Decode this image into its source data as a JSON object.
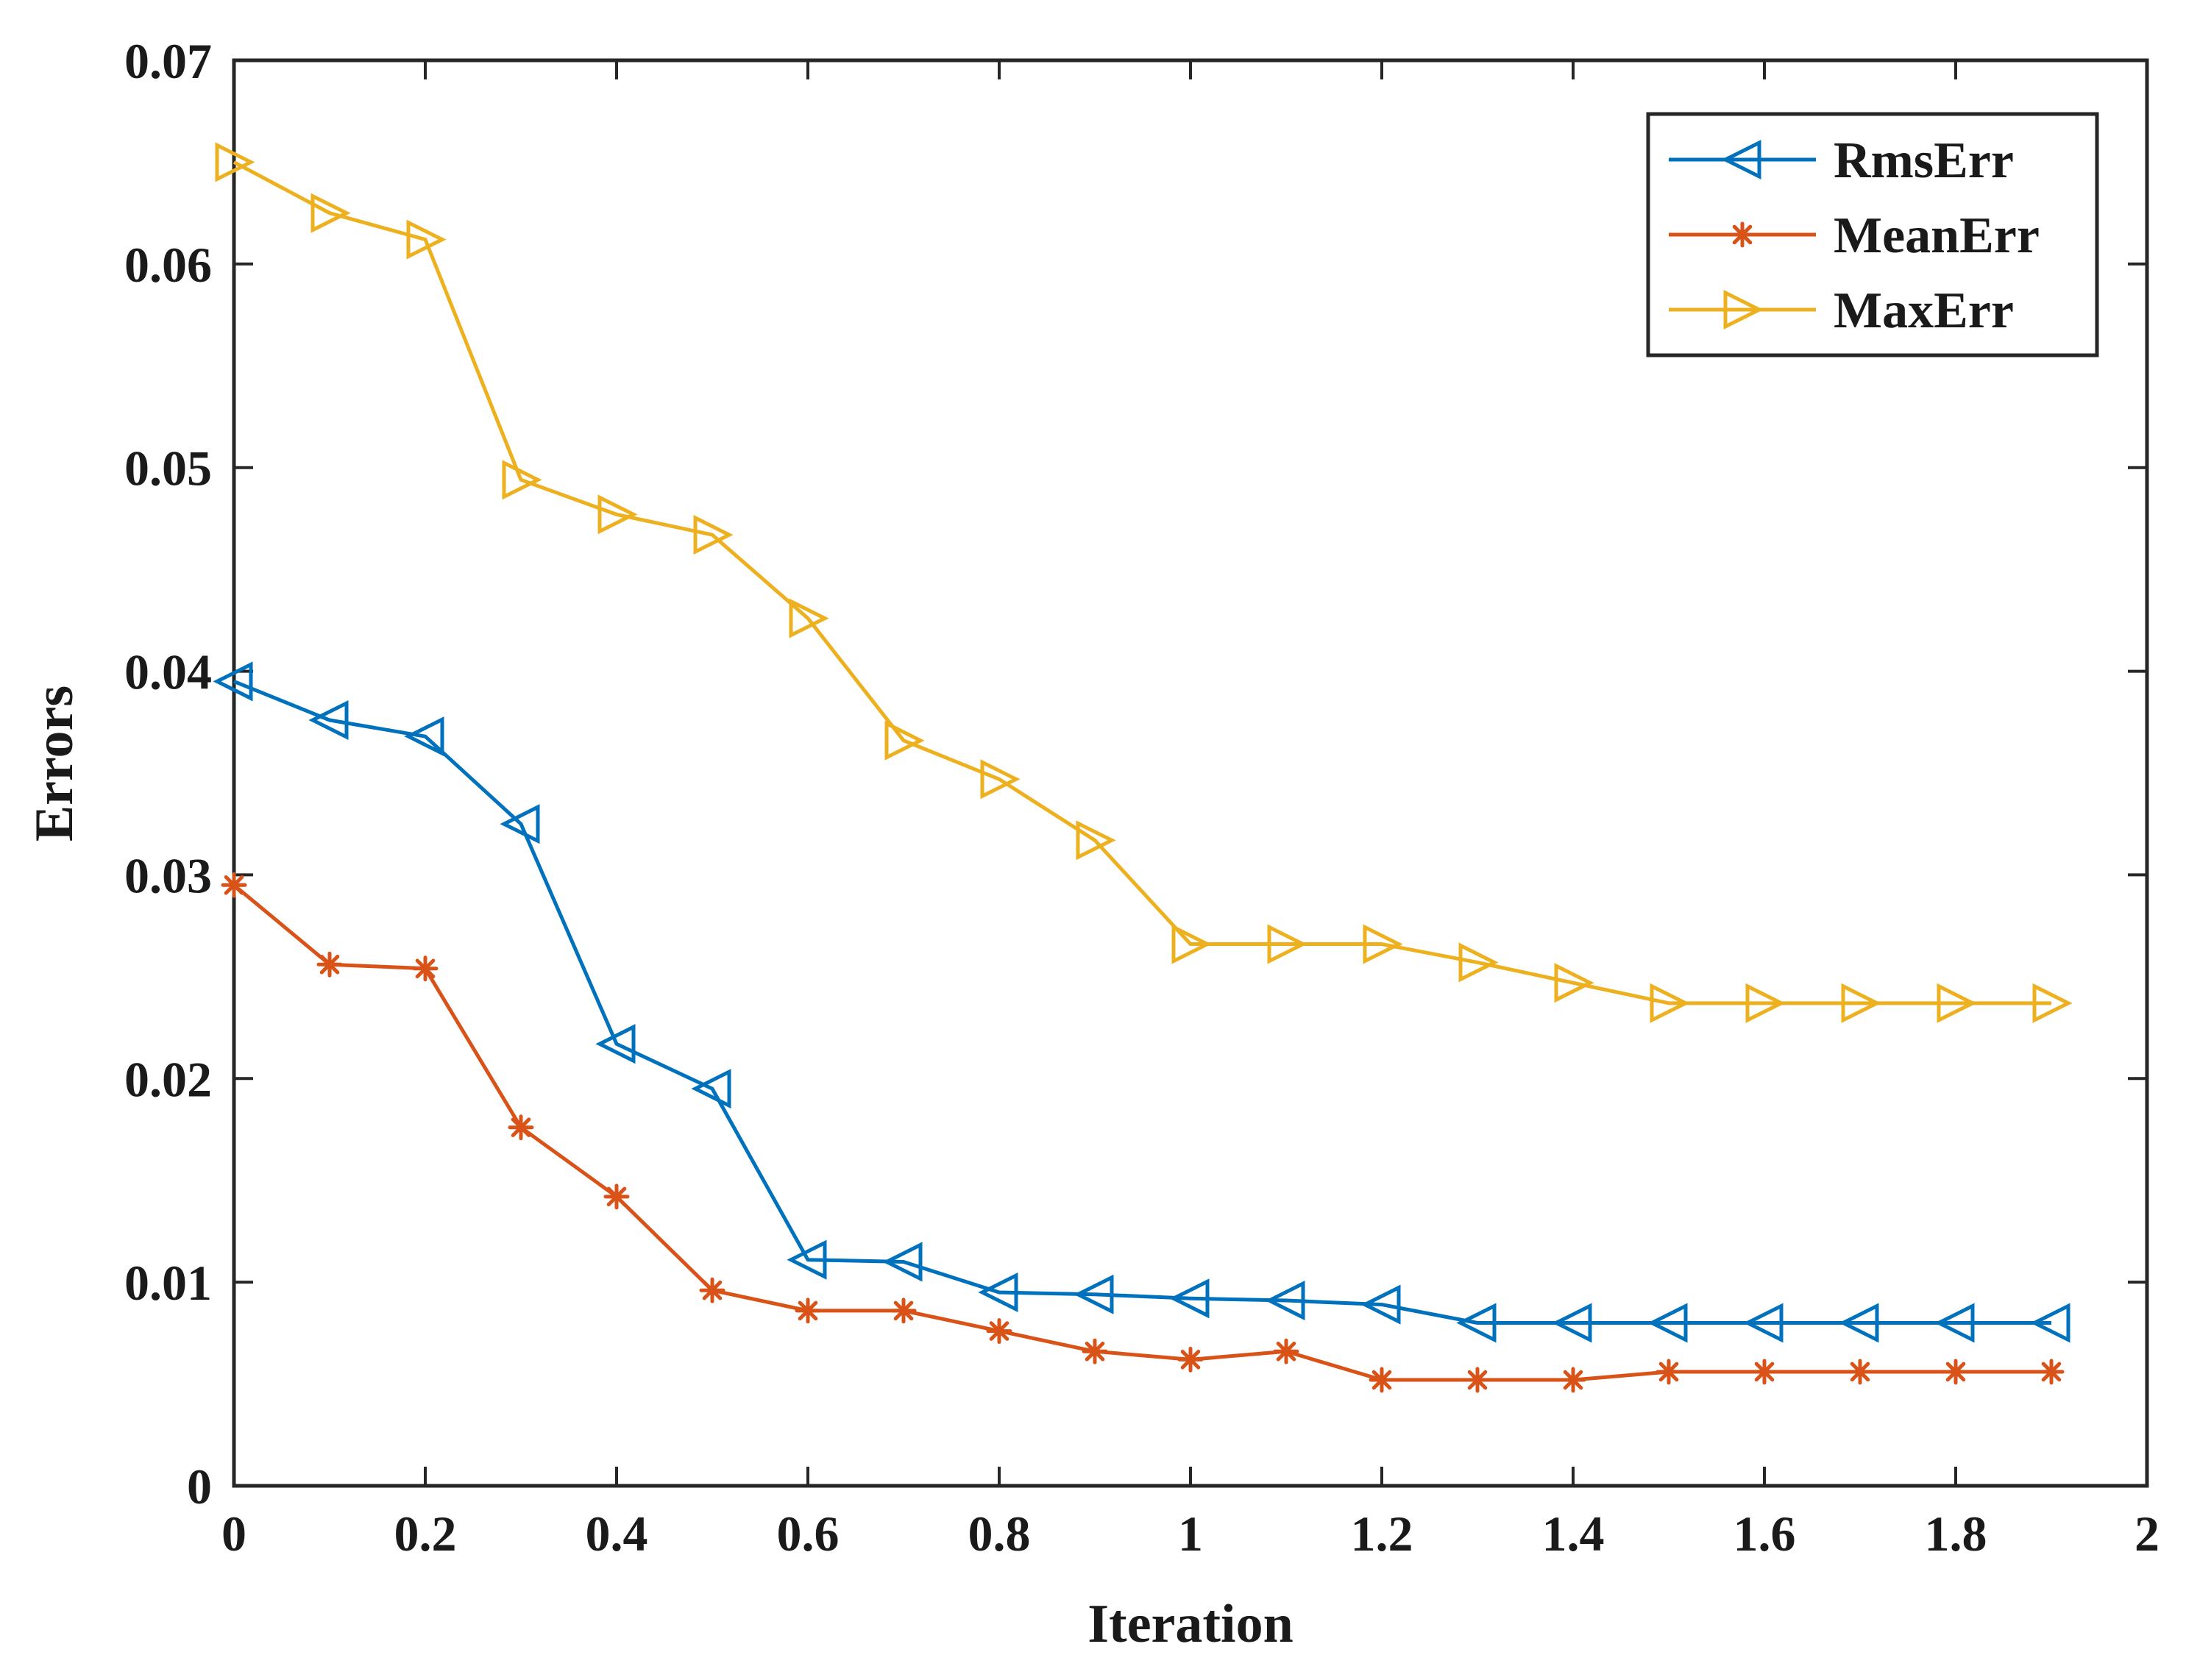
{
  "chart_data": {
    "type": "line",
    "title": "",
    "xlabel": "Iteration",
    "ylabel": "Errors",
    "xlim": [
      0,
      2
    ],
    "ylim": [
      0,
      0.07
    ],
    "xticks": [
      0,
      0.2,
      0.4,
      0.6,
      0.8,
      1,
      1.2,
      1.4,
      1.6,
      1.8,
      2
    ],
    "xtick_labels": [
      "0",
      "0.2",
      "0.4",
      "0.6",
      "0.8",
      "1",
      "1.2",
      "1.4",
      "1.6",
      "1.8",
      "2"
    ],
    "yticks": [
      0,
      0.01,
      0.02,
      0.03,
      0.04,
      0.05,
      0.06,
      0.07
    ],
    "ytick_labels": [
      "0",
      "0.01",
      "0.02",
      "0.03",
      "0.04",
      "0.05",
      "0.06",
      "0.07"
    ],
    "grid": false,
    "legend_position": "top-right",
    "x": [
      0,
      0.1,
      0.2,
      0.3,
      0.4,
      0.5,
      0.6,
      0.7,
      0.8,
      0.9,
      1.0,
      1.1,
      1.2,
      1.3,
      1.4,
      1.5,
      1.6,
      1.7,
      1.8,
      1.9
    ],
    "series": [
      {
        "name": "RmsErr",
        "color": "#0072BD",
        "marker": "triangle-left",
        "values": [
          0.0395,
          0.0376,
          0.0368,
          0.0325,
          0.0217,
          0.0195,
          0.0111,
          0.011,
          0.0095,
          0.0094,
          0.0092,
          0.0091,
          0.0089,
          0.008,
          0.008,
          0.008,
          0.008,
          0.008,
          0.008,
          0.008
        ]
      },
      {
        "name": "MeanErr",
        "color": "#D95319",
        "marker": "asterisk",
        "values": [
          0.0295,
          0.0256,
          0.0254,
          0.0176,
          0.0142,
          0.0096,
          0.0086,
          0.0086,
          0.0076,
          0.0066,
          0.0062,
          0.0066,
          0.0052,
          0.0052,
          0.0052,
          0.0056,
          0.0056,
          0.0056,
          0.0056,
          0.0056
        ]
      },
      {
        "name": "MaxErr",
        "color": "#EDB120",
        "marker": "triangle-right",
        "values": [
          0.065,
          0.0625,
          0.0612,
          0.0494,
          0.0477,
          0.0467,
          0.0426,
          0.0366,
          0.0347,
          0.0317,
          0.0266,
          0.0266,
          0.0266,
          0.0257,
          0.0247,
          0.0237,
          0.0237,
          0.0237,
          0.0237,
          0.0237
        ]
      }
    ]
  }
}
